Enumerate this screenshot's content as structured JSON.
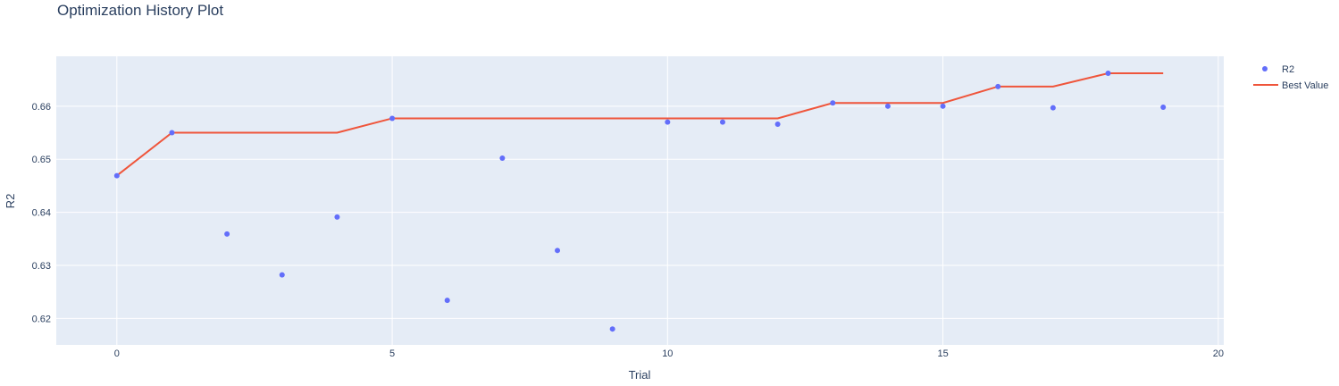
{
  "chart_data": {
    "type": "scatter",
    "title": "Optimization History Plot",
    "xlabel": "Trial",
    "ylabel": "R2",
    "xlim": [
      -1.1,
      20.1
    ],
    "ylim": [
      0.615,
      0.6694
    ],
    "xticks": [
      0,
      5,
      10,
      15,
      20
    ],
    "yticks": [
      0.62,
      0.63,
      0.64,
      0.65,
      0.66
    ],
    "ytick_labels": [
      "0.62",
      "0.63",
      "0.64",
      "0.65",
      "0.66"
    ],
    "grid": true,
    "legend_position": "top-right",
    "series": [
      {
        "name": "R2",
        "type": "scatter",
        "color": "#636efa",
        "x": [
          0,
          1,
          2,
          3,
          4,
          5,
          6,
          7,
          8,
          9,
          10,
          11,
          12,
          13,
          14,
          15,
          16,
          17,
          18,
          19
        ],
        "y": [
          0.6469,
          0.655,
          0.6359,
          0.6282,
          0.6391,
          0.6577,
          0.6234,
          0.6502,
          0.6328,
          0.618,
          0.657,
          0.657,
          0.6566,
          0.6606,
          0.66,
          0.66,
          0.6637,
          0.6597,
          0.6662,
          0.6598
        ]
      },
      {
        "name": "Best Value",
        "type": "line",
        "color": "#ef553b",
        "x": [
          0,
          1,
          2,
          3,
          4,
          5,
          6,
          7,
          8,
          9,
          10,
          11,
          12,
          13,
          14,
          15,
          16,
          17,
          18,
          19
        ],
        "y": [
          0.6469,
          0.655,
          0.655,
          0.655,
          0.655,
          0.6577,
          0.6577,
          0.6577,
          0.6577,
          0.6577,
          0.6577,
          0.6577,
          0.6577,
          0.6606,
          0.6606,
          0.6606,
          0.6637,
          0.6637,
          0.6662,
          0.6662
        ]
      }
    ]
  }
}
